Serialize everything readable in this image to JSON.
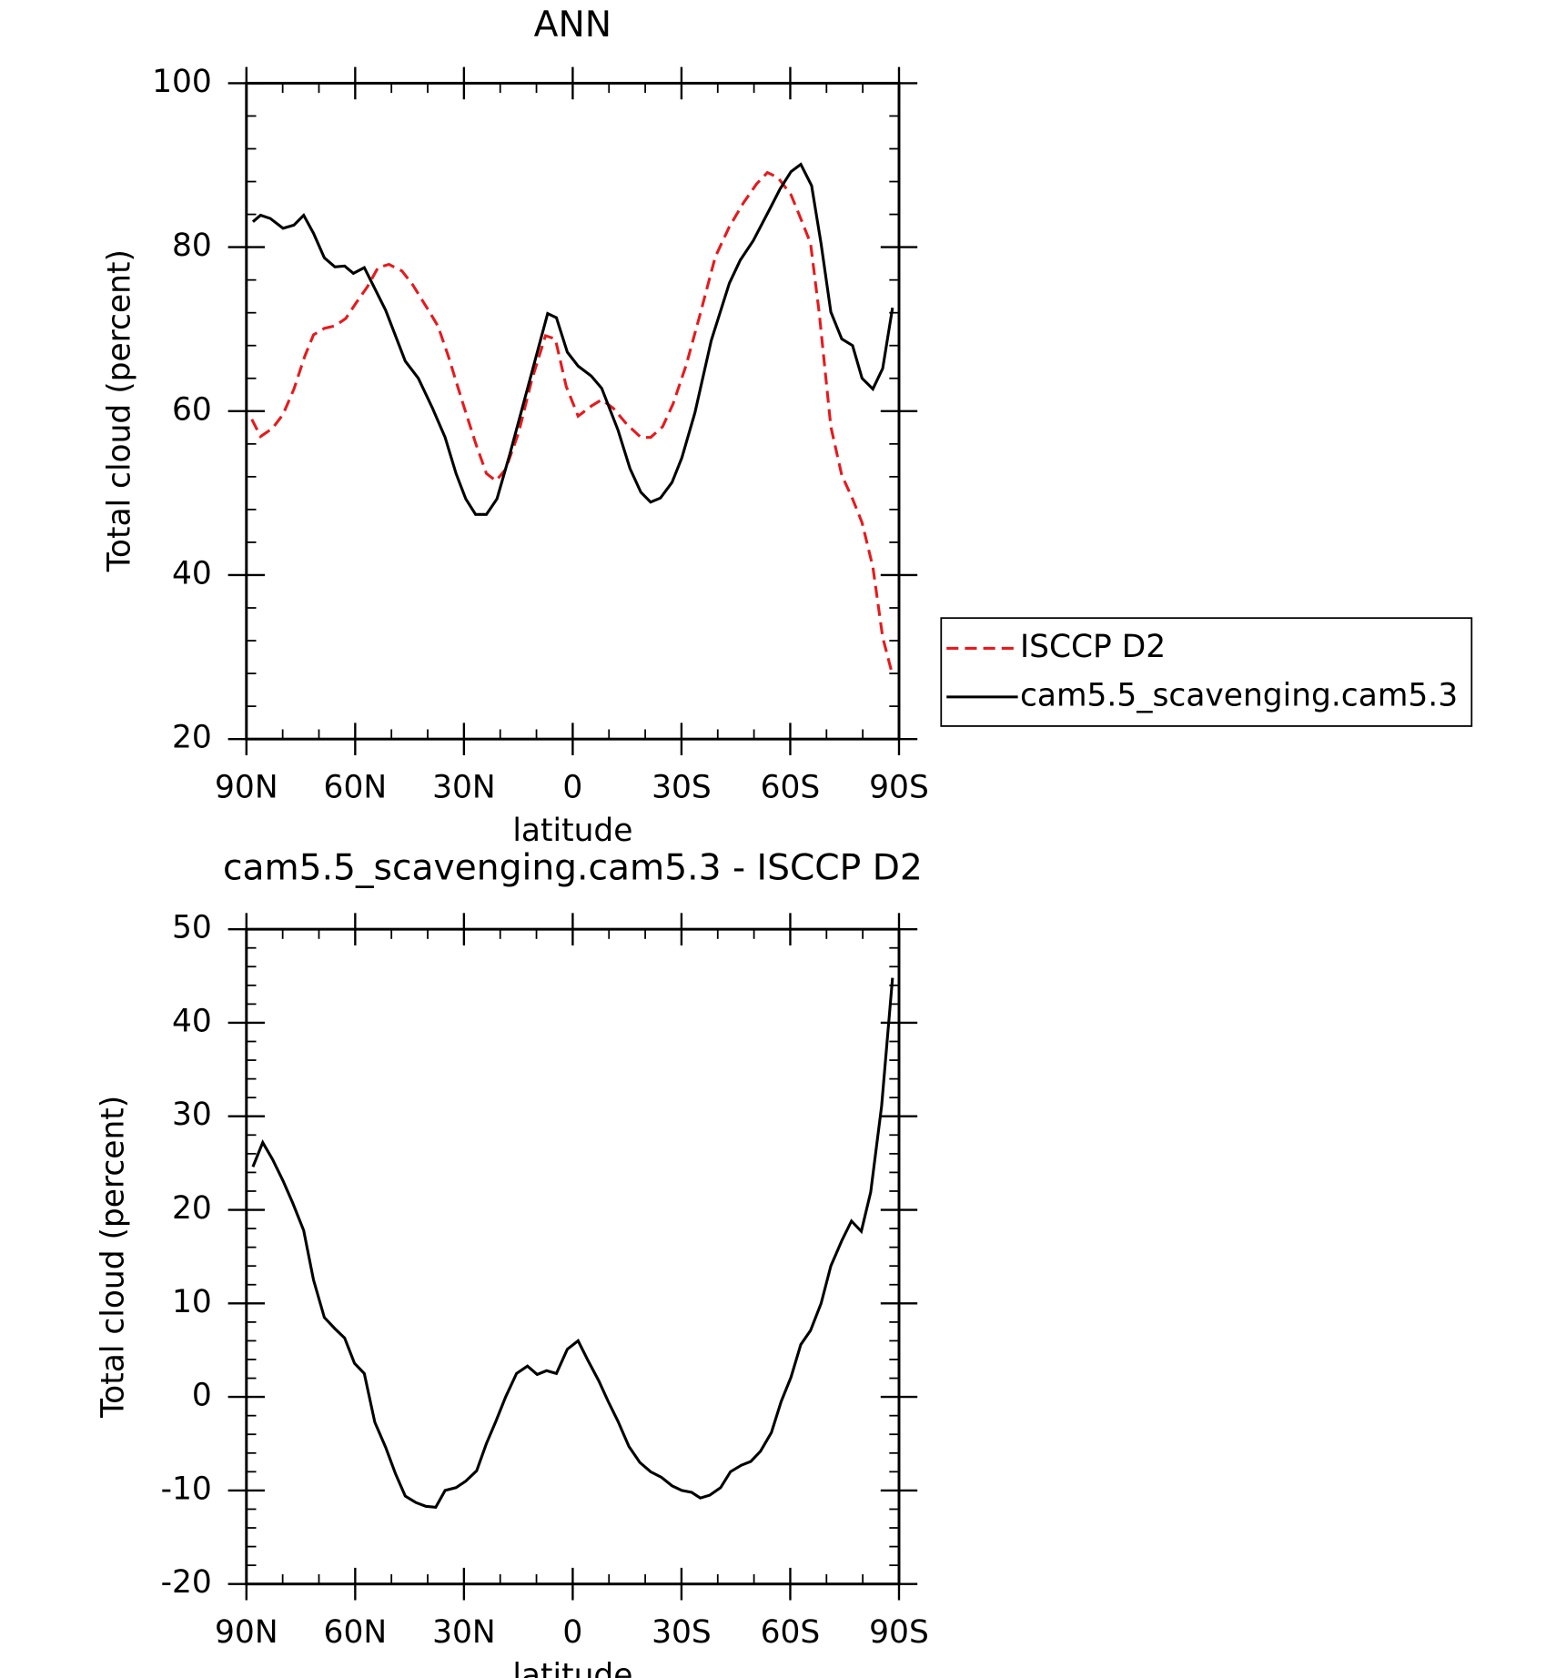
{
  "chart_data": [
    {
      "type": "line",
      "title": "ANN",
      "xlabel": "latitude",
      "ylabel": "Total cloud (percent)",
      "xlim": [
        90,
        -90
      ],
      "xticks": [
        {
          "value": 90,
          "label": "90N"
        },
        {
          "value": 60,
          "label": "60N"
        },
        {
          "value": 30,
          "label": "30N"
        },
        0,
        {
          "value": -30,
          "label": "30S"
        },
        {
          "value": -60,
          "label": "60S"
        },
        {
          "value": -90,
          "label": "90S"
        }
      ],
      "ylim": [
        20,
        100
      ],
      "yticks": [
        20,
        40,
        60,
        80,
        100
      ],
      "legend": "right",
      "series": [
        {
          "name": "ISCCP D2",
          "color": "#e8191c",
          "dash": true,
          "x": [
            88.5,
            86.1,
            82.8,
            79.9,
            76.9,
            73.9,
            71.5,
            68.5,
            65.6,
            62.6,
            59.6,
            56.6,
            53.7,
            50.7,
            47.1,
            44.1,
            40.2,
            37.2,
            34.3,
            30.4,
            26.8,
            23.8,
            21.2,
            18.5,
            14.9,
            11.3,
            7.5,
            4.8,
            1.8,
            -1.5,
            -5.1,
            -8.0,
            -11.3,
            -14.9,
            -18.8,
            -21.5,
            -24.8,
            -27.7,
            -31.3,
            -35.2,
            -39.3,
            -43.2,
            -47.1,
            -50.7,
            -53.7,
            -56.6,
            -60.2,
            -62.6,
            -65.6,
            -68.0,
            -71.2,
            -74.2,
            -77.2,
            -79.8,
            -82.8,
            -85.5,
            -88.2
          ],
          "values": [
            59.0,
            56.9,
            57.9,
            59.6,
            62.7,
            66.7,
            69.3,
            70.1,
            70.4,
            71.3,
            73.3,
            75.2,
            77.5,
            77.9,
            77.1,
            75.4,
            72.6,
            70.4,
            66.7,
            61.1,
            56.1,
            52.4,
            51.5,
            52.9,
            57.4,
            63.8,
            69.2,
            68.8,
            63.0,
            59.4,
            60.6,
            61.4,
            60.3,
            58.4,
            56.8,
            56.8,
            58.1,
            60.9,
            65.6,
            71.9,
            78.8,
            82.5,
            85.4,
            87.7,
            89.1,
            88.5,
            86.4,
            83.8,
            80.5,
            71.9,
            58.1,
            52.2,
            49.3,
            46.4,
            41.0,
            32.4,
            27.8
          ]
        },
        {
          "name": "cam5.5_scavenging.cam5.3",
          "color": "#000000",
          "dash": false,
          "x": [
            88.2,
            86.1,
            83.4,
            79.9,
            76.9,
            74.2,
            71.5,
            68.5,
            65.6,
            62.9,
            60.5,
            57.5,
            51.6,
            46.2,
            42.6,
            38.7,
            35.2,
            32.2,
            29.5,
            26.8,
            23.8,
            20.9,
            17.3,
            13.1,
            6.9,
            4.5,
            1.5,
            -1.5,
            -5.1,
            -8.0,
            -12.5,
            -15.8,
            -18.8,
            -21.5,
            -24.2,
            -27.4,
            -30.1,
            -33.7,
            -38.2,
            -43.2,
            -46.2,
            -49.8,
            -54.3,
            -57.2,
            -60.2,
            -62.9,
            -65.9,
            -68.5,
            -71.2,
            -74.2,
            -77.2,
            -79.8,
            -82.8,
            -85.5,
            -88.2
          ],
          "values": [
            83.1,
            83.9,
            83.5,
            82.3,
            82.7,
            83.9,
            81.7,
            78.7,
            77.6,
            77.7,
            76.8,
            77.5,
            72.3,
            66.1,
            64.0,
            60.4,
            56.8,
            52.4,
            49.3,
            47.4,
            47.4,
            49.3,
            54.8,
            61.7,
            71.9,
            71.4,
            67.2,
            65.5,
            64.3,
            62.8,
            57.7,
            53.0,
            50.1,
            48.9,
            49.4,
            51.3,
            54.3,
            59.8,
            68.6,
            75.6,
            78.4,
            80.8,
            84.6,
            87.1,
            89.2,
            90.1,
            87.5,
            80.4,
            72.1,
            68.8,
            68.0,
            64.0,
            62.7,
            65.2,
            72.6
          ]
        }
      ]
    },
    {
      "type": "line",
      "title": "cam5.5_scavenging.cam5.3 - ISCCP D2",
      "xlabel": "latitude",
      "ylabel": "Total cloud (percent)",
      "xlim": [
        90,
        -90
      ],
      "xticks": [
        {
          "value": 90,
          "label": "90N"
        },
        {
          "value": 60,
          "label": "60N"
        },
        {
          "value": 30,
          "label": "30N"
        },
        0,
        {
          "value": -30,
          "label": "30S"
        },
        {
          "value": -60,
          "label": "60S"
        },
        {
          "value": -90,
          "label": "90S"
        }
      ],
      "ylim": [
        -20,
        50
      ],
      "yticks": [
        -20,
        -10,
        0,
        10,
        20,
        30,
        40,
        50
      ],
      "color": "#000000",
      "x": [
        88.2,
        85.5,
        82.8,
        79.9,
        77.2,
        74.2,
        71.5,
        68.5,
        65.6,
        62.9,
        60.2,
        57.5,
        54.6,
        51.6,
        48.9,
        46.2,
        43.2,
        40.5,
        37.8,
        35.2,
        32.2,
        29.5,
        26.5,
        23.8,
        21.2,
        18.5,
        15.5,
        12.5,
        9.8,
        7.2,
        4.5,
        1.5,
        -1.5,
        -4.2,
        -7.2,
        -9.8,
        -12.5,
        -15.5,
        -18.5,
        -21.5,
        -24.5,
        -27.4,
        -30.1,
        -32.8,
        -35.2,
        -37.8,
        -40.8,
        -43.5,
        -46.5,
        -49.1,
        -51.8,
        -54.8,
        -57.5,
        -60.2,
        -62.9,
        -65.6,
        -68.5,
        -71.2,
        -74.2,
        -76.9,
        -79.6,
        -82.2,
        -85.2,
        -88.2
      ],
      "values": [
        24.6,
        27.2,
        25.4,
        23.1,
        20.7,
        17.8,
        12.5,
        8.5,
        7.3,
        6.3,
        3.6,
        2.5,
        -2.7,
        -5.4,
        -8.2,
        -10.6,
        -11.3,
        -11.7,
        -11.8,
        -10.0,
        -9.7,
        -9.0,
        -7.9,
        -5.0,
        -2.6,
        0.0,
        2.5,
        3.3,
        2.4,
        2.8,
        2.5,
        5.1,
        6.0,
        3.9,
        1.7,
        -0.5,
        -2.6,
        -5.3,
        -7.0,
        -8.0,
        -8.6,
        -9.5,
        -10.0,
        -10.2,
        -10.8,
        -10.5,
        -9.7,
        -8.0,
        -7.3,
        -6.9,
        -5.8,
        -3.8,
        -0.5,
        2.1,
        5.6,
        7.1,
        10.0,
        14.0,
        16.7,
        18.8,
        17.7,
        21.9,
        31.1,
        44.8
      ]
    }
  ]
}
